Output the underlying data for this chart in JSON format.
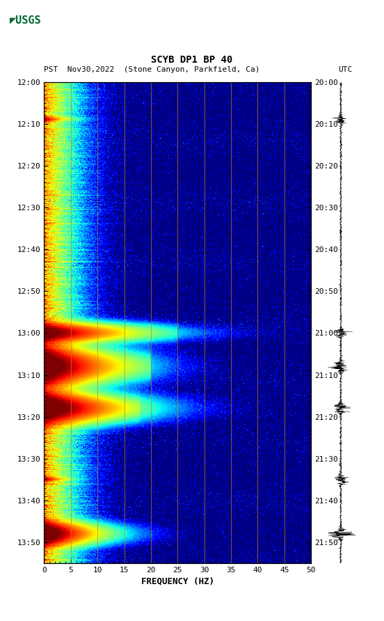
{
  "title_line1": "SCYB DP1 BP 40",
  "title_line2_pst": "PST  Nov30,2022  (Stone Canyon, Parkfield, Ca)",
  "title_line2_utc": "UTC",
  "xlabel": "FREQUENCY (HZ)",
  "freq_min": 0,
  "freq_max": 50,
  "pst_labels": [
    "12:00",
    "12:10",
    "12:20",
    "12:30",
    "12:40",
    "12:50",
    "13:00",
    "13:10",
    "13:20",
    "13:30",
    "13:40",
    "13:50"
  ],
  "utc_labels": [
    "20:00",
    "20:10",
    "20:20",
    "20:30",
    "20:40",
    "20:50",
    "21:00",
    "21:10",
    "21:20",
    "21:30",
    "21:40",
    "21:50"
  ],
  "freq_ticks": [
    0,
    5,
    10,
    15,
    20,
    25,
    30,
    35,
    40,
    45,
    50
  ],
  "vert_lines_freq": [
    5,
    10,
    15,
    20,
    25,
    30,
    35,
    40,
    45
  ],
  "bg_color": "#ffffff",
  "usgs_green": "#006633",
  "n_time": 700,
  "n_freq": 500,
  "total_minutes": 115
}
